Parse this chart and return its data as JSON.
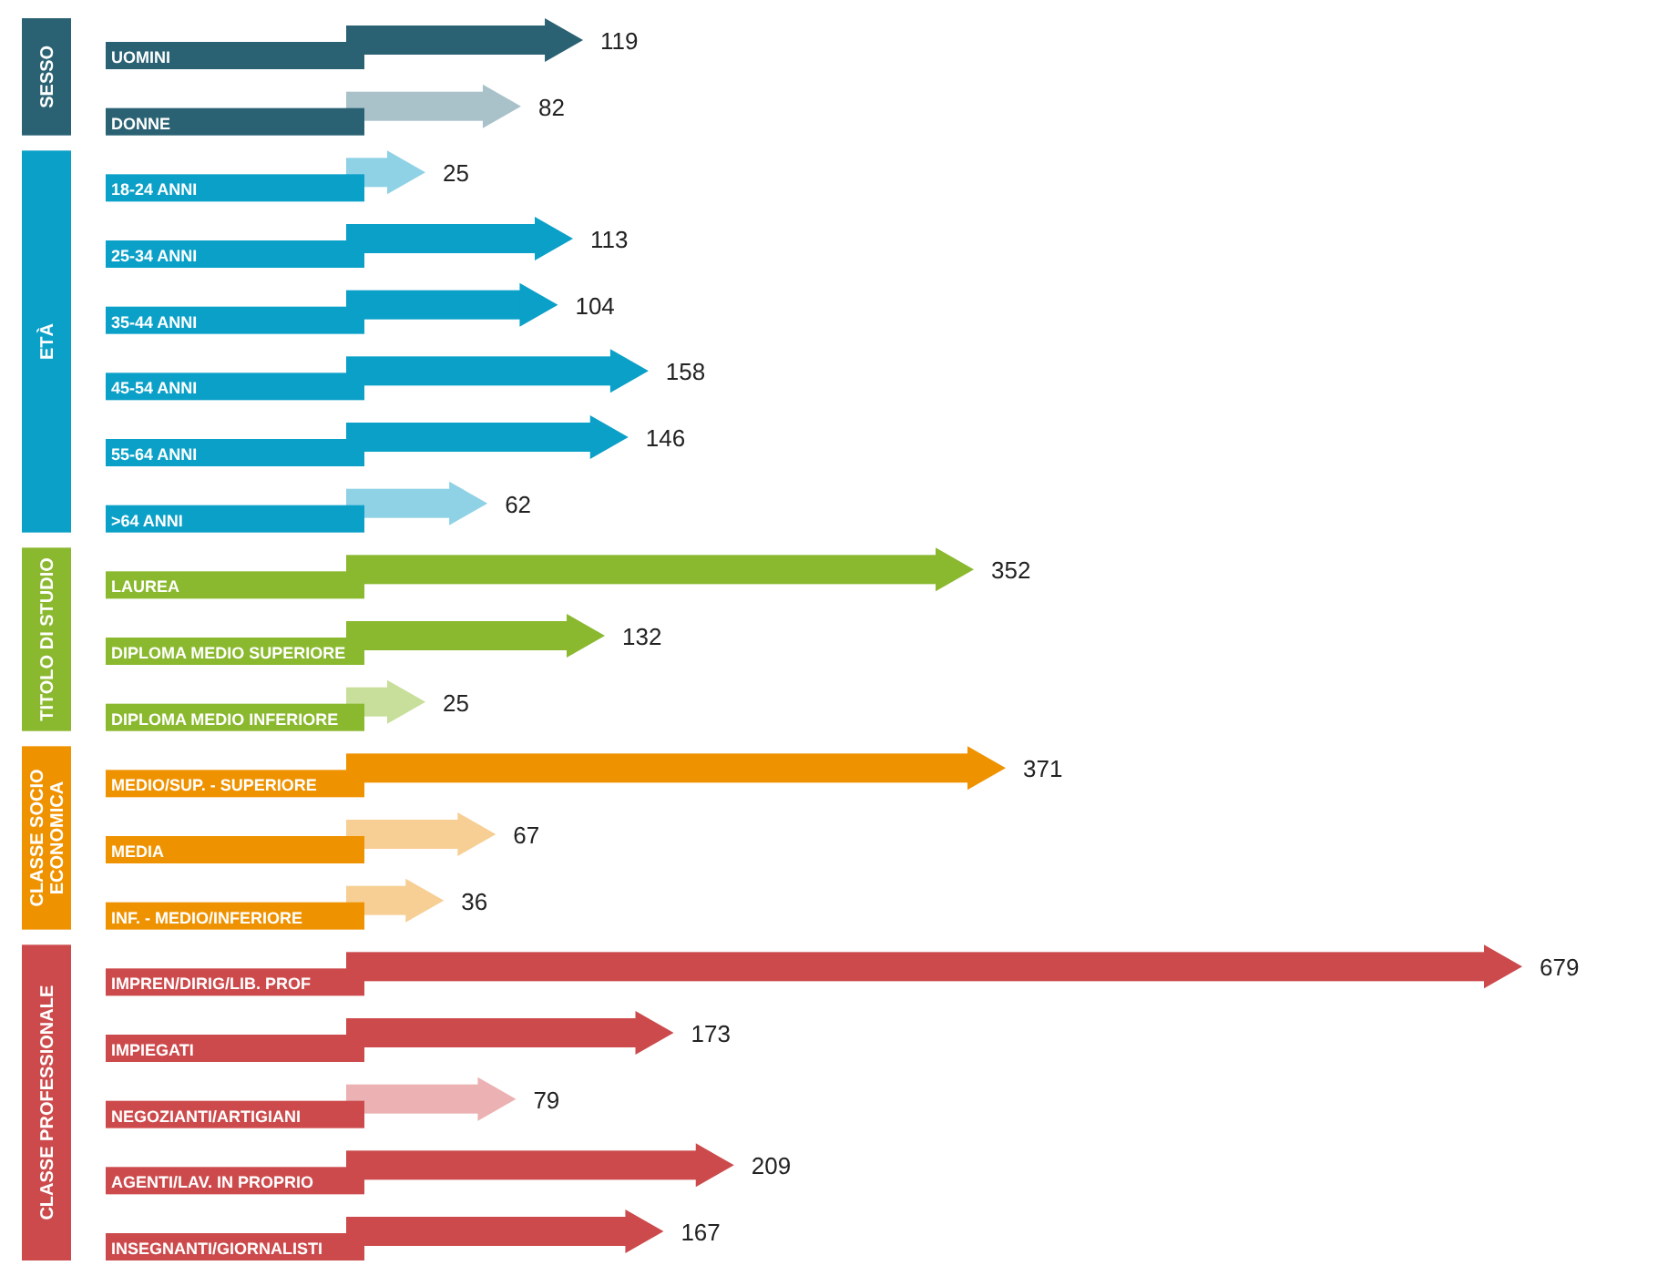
{
  "chart_data": [
    {
      "type": "bar",
      "orientation": "horizontal",
      "data_labels": true,
      "ylabel": "SESSO",
      "categories": [
        "UOMINI",
        "DONNE"
      ],
      "series": [
        {
          "color": "#2a6273",
          "colors": [
            "#2a6273",
            "#a9c2c9"
          ],
          "values": [
            119,
            82
          ]
        }
      ]
    },
    {
      "type": "bar",
      "orientation": "horizontal",
      "data_labels": true,
      "ylabel": "ETÀ",
      "categories": [
        "18-24 ANNI",
        "25-34 ANNI",
        "35-44 ANNI",
        "45-54 ANNI",
        "55-64 ANNI",
        ">64 ANNI"
      ],
      "series": [
        {
          "color": "#0aa0c8",
          "colors": [
            "#8fd2e6",
            "#0aa0c8",
            "#0aa0c8",
            "#0aa0c8",
            "#0aa0c8",
            "#8fd2e6"
          ],
          "values": [
            25,
            113,
            104,
            158,
            146,
            62
          ]
        }
      ]
    },
    {
      "type": "bar",
      "orientation": "horizontal",
      "data_labels": true,
      "ylabel": "TITOLO DI STUDIO",
      "categories": [
        "LAUREA",
        "DIPLOMA MEDIO SUPERIORE",
        "DIPLOMA MEDIO INFERIORE"
      ],
      "series": [
        {
          "color": "#8ab82e",
          "colors": [
            "#8ab82e",
            "#8ab82e",
            "#c7df9a"
          ],
          "values": [
            352,
            132,
            25
          ]
        }
      ]
    },
    {
      "type": "bar",
      "orientation": "horizontal",
      "data_labels": true,
      "ylabel": "CLASSE SOCIO ECONOMICA",
      "categories": [
        "MEDIO/SUP. - SUPERIORE",
        "MEDIA",
        "INF. - MEDIO/INFERIORE"
      ],
      "series": [
        {
          "color": "#ef9200",
          "colors": [
            "#ef9200",
            "#f7cf94",
            "#f7cf94"
          ],
          "values": [
            371,
            67,
            36
          ]
        }
      ]
    },
    {
      "type": "bar",
      "orientation": "horizontal",
      "data_labels": true,
      "ylabel": "CLASSE PROFESSIONALE",
      "categories": [
        "IMPREN/DIRIG/LIB. PROF",
        "IMPIEGATI",
        "NEGOZIANTI/ARTIGIANI",
        "AGENTI/LAV. IN PROPRIO",
        "INSEGNANTI/GIORNALISTI"
      ],
      "series": [
        {
          "color": "#cc4a4c",
          "colors": [
            "#cc4a4c",
            "#cc4a4c",
            "#ecb2b3",
            "#cc4a4c",
            "#cc4a4c"
          ],
          "values": [
            679,
            173,
            79,
            209,
            167
          ]
        }
      ]
    }
  ]
}
